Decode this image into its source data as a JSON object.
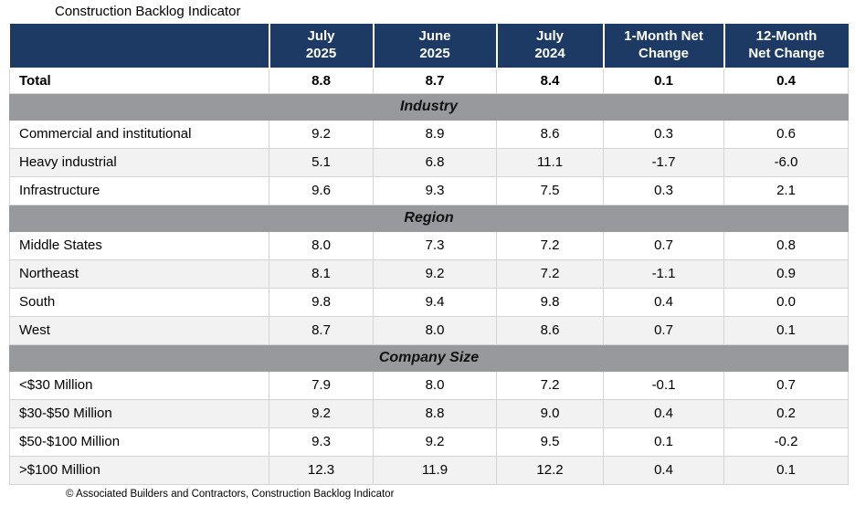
{
  "title": "Construction Backlog Indicator",
  "footer": "© Associated Builders and Contractors, Construction Backlog Indicator",
  "colors": {
    "header_bg": "#1C3A64",
    "header_text": "#FFFFFF",
    "section_bg": "#97999C",
    "row_alt_bg": "#F2F2F2",
    "grid_line": "#D4D4D4"
  },
  "header": {
    "columns": [
      "July\n2025",
      "June\n2025",
      "July\n2024",
      "1-Month Net\nChange",
      "12-Month\nNet Change"
    ]
  },
  "chart_data": {
    "type": "table",
    "title": "Construction Backlog Indicator",
    "columns": [
      "",
      "July 2025",
      "June 2025",
      "July 2024",
      "1-Month Net Change",
      "12-Month Net Change"
    ],
    "total_row": {
      "label": "Total",
      "values": [
        "8.8",
        "8.7",
        "8.4",
        "0.1",
        "0.4"
      ]
    },
    "sections": [
      {
        "name": "Industry",
        "rows": [
          {
            "label": "Commercial and institutional",
            "values": [
              "9.2",
              "8.9",
              "8.6",
              "0.3",
              "0.6"
            ]
          },
          {
            "label": "Heavy industrial",
            "values": [
              "5.1",
              "6.8",
              "11.1",
              "-1.7",
              "-6.0"
            ]
          },
          {
            "label": "Infrastructure",
            "values": [
              "9.6",
              "9.3",
              "7.5",
              "0.3",
              "2.1"
            ]
          }
        ]
      },
      {
        "name": "Region",
        "rows": [
          {
            "label": "Middle States",
            "values": [
              "8.0",
              "7.3",
              "7.2",
              "0.7",
              "0.8"
            ]
          },
          {
            "label": "Northeast",
            "values": [
              "8.1",
              "9.2",
              "7.2",
              "-1.1",
              "0.9"
            ]
          },
          {
            "label": "South",
            "values": [
              "9.8",
              "9.4",
              "9.8",
              "0.4",
              "0.0"
            ]
          },
          {
            "label": "West",
            "values": [
              "8.7",
              "8.0",
              "8.6",
              "0.7",
              "0.1"
            ]
          }
        ]
      },
      {
        "name": "Company Size",
        "rows": [
          {
            "label": "<$30 Million",
            "values": [
              "7.9",
              "8.0",
              "7.2",
              "-0.1",
              "0.7"
            ]
          },
          {
            "label": "$30-$50 Million",
            "values": [
              "9.2",
              "8.8",
              "9.0",
              "0.4",
              "0.2"
            ]
          },
          {
            "label": "$50-$100 Million",
            "values": [
              "9.3",
              "9.2",
              "9.5",
              "0.1",
              "-0.2"
            ]
          },
          {
            "label": ">$100 Million",
            "values": [
              "12.3",
              "11.9",
              "12.2",
              "0.4",
              "0.1"
            ]
          }
        ]
      }
    ]
  }
}
